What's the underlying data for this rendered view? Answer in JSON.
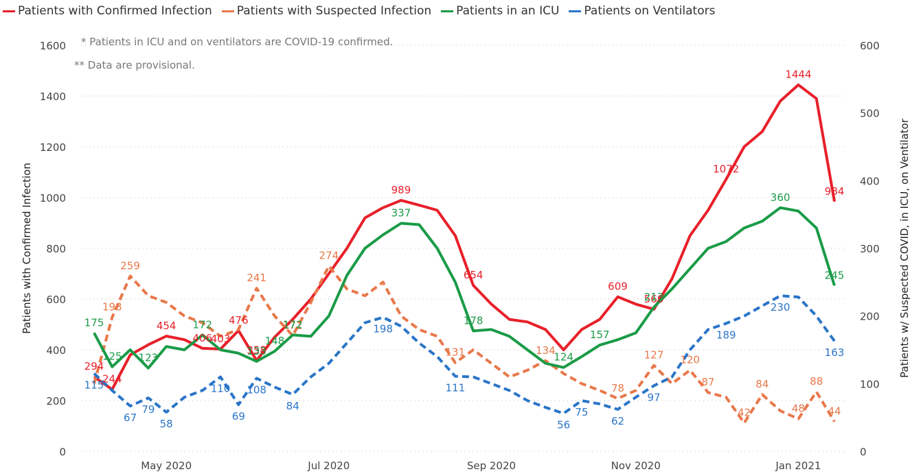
{
  "chart_data": {
    "type": "line",
    "legend": "top-left",
    "notes": [
      "* Patients in ICU and on ventilators are COVID-19 confirmed.",
      "** Data are provisional."
    ],
    "ylabel": "Patients with Confirmed Infection",
    "y2label": "Patients w/ Suspected COVID, in ICU, on Ventilator",
    "ylim": [
      0,
      1600
    ],
    "yticks": [
      0,
      200,
      400,
      600,
      800,
      1000,
      1200,
      1400,
      1600
    ],
    "y2lim": [
      0,
      600
    ],
    "y2ticks": [
      0,
      100,
      200,
      300,
      400,
      500,
      600
    ],
    "grid": true,
    "categories": [
      null,
      null,
      null,
      null,
      "May 2020",
      null,
      null,
      null,
      null,
      null,
      null,
      null,
      null,
      "Jul 2020",
      null,
      null,
      null,
      null,
      null,
      null,
      null,
      null,
      "Sep 2020",
      null,
      null,
      null,
      null,
      null,
      null,
      null,
      "Nov 2020",
      null,
      null,
      null,
      null,
      null,
      null,
      null,
      null,
      "Jan 2021",
      null,
      null
    ],
    "series": [
      {
        "name": "Patients with Confirmed Infection",
        "color": "#e8202a",
        "line_style": "solid",
        "values": [
          294,
          244,
          380,
          420,
          454,
          440,
          406,
          403,
          476,
          358,
          450,
          520,
          600,
          700,
          800,
          920,
          960,
          989,
          970,
          950,
          850,
          654,
          580,
          520,
          510,
          480,
          400,
          480,
          520,
          609,
          580,
          560,
          680,
          850,
          950,
          1072,
          1200,
          1260,
          1380,
          1444,
          1390,
          984
        ],
        "value_labels": [
          "294",
          "244",
          null,
          null,
          "454",
          null,
          "406",
          "403",
          "476",
          "358",
          null,
          null,
          null,
          null,
          null,
          null,
          null,
          "989",
          null,
          null,
          null,
          "654",
          null,
          null,
          null,
          null,
          null,
          null,
          null,
          "609",
          null,
          "560",
          null,
          null,
          null,
          "1072",
          null,
          null,
          null,
          "1444",
          null,
          "984"
        ]
      },
      {
        "name": "Patients with Suspected Infection",
        "color": "#e8784a",
        "line_style": "dashed",
        "axis": "y2",
        "values": [
          100,
          198,
          259,
          230,
          220,
          200,
          190,
          170,
          180,
          241,
          200,
          171,
          220,
          274,
          240,
          230,
          250,
          200,
          180,
          170,
          131,
          150,
          130,
          110,
          120,
          134,
          115,
          100,
          90,
          78,
          90,
          127,
          100,
          120,
          87,
          80,
          42,
          84,
          60,
          48,
          88,
          44
        ],
        "value_labels": [
          null,
          "198",
          "259",
          null,
          null,
          null,
          null,
          null,
          null,
          "241",
          null,
          "171",
          null,
          "274",
          null,
          null,
          null,
          null,
          null,
          null,
          "131",
          null,
          null,
          null,
          null,
          "134",
          null,
          null,
          null,
          "78",
          null,
          "127",
          null,
          "120",
          "87",
          null,
          "42",
          "84",
          null,
          "48",
          "88",
          "44"
        ]
      },
      {
        "name": "Patients in an ICU",
        "color": "#1a9b47",
        "line_style": "solid",
        "axis": "y2",
        "values": [
          175,
          125,
          150,
          123,
          155,
          150,
          172,
          150,
          145,
          133,
          148,
          172,
          170,
          200,
          260,
          300,
          320,
          337,
          335,
          300,
          250,
          178,
          180,
          170,
          150,
          130,
          124,
          140,
          157,
          165,
          175,
          213,
          240,
          270,
          300,
          310,
          330,
          340,
          360,
          355,
          330,
          245
        ],
        "value_labels": [
          "175",
          "125",
          null,
          "123",
          null,
          null,
          "172",
          null,
          null,
          "133",
          "148",
          "172",
          null,
          null,
          null,
          null,
          null,
          "337",
          null,
          null,
          null,
          "178",
          null,
          null,
          null,
          null,
          "124",
          null,
          "157",
          null,
          null,
          "213",
          null,
          null,
          null,
          null,
          null,
          null,
          "360",
          null,
          null,
          "245"
        ]
      },
      {
        "name": "Patients on Ventilators",
        "color": "#2a75c8",
        "line_style": "dashed",
        "axis": "y2",
        "values": [
          115,
          90,
          67,
          79,
          58,
          80,
          90,
          110,
          69,
          108,
          95,
          84,
          110,
          130,
          160,
          190,
          198,
          185,
          160,
          140,
          111,
          110,
          100,
          90,
          75,
          65,
          56,
          75,
          70,
          62,
          80,
          97,
          110,
          150,
          180,
          189,
          200,
          215,
          230,
          228,
          200,
          163
        ],
        "value_labels": [
          "115",
          null,
          "67",
          "79",
          "58",
          null,
          null,
          "110",
          "69",
          "108",
          null,
          "84",
          null,
          null,
          null,
          null,
          "198",
          null,
          null,
          null,
          "111",
          null,
          null,
          null,
          null,
          null,
          "56",
          "75",
          null,
          "62",
          null,
          "97",
          null,
          null,
          null,
          "189",
          null,
          null,
          "230",
          null,
          null,
          "163"
        ]
      }
    ]
  }
}
